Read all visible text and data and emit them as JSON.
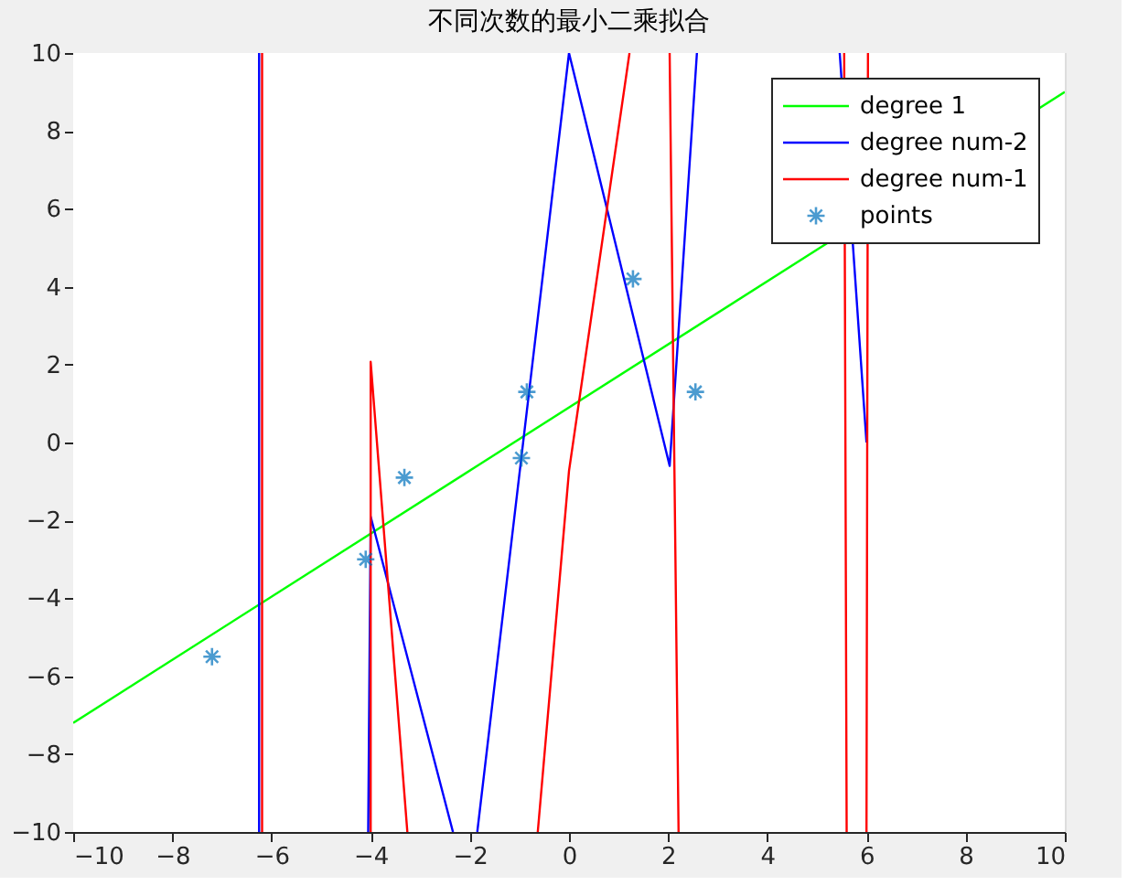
{
  "chart_data": {
    "type": "line",
    "title": "不同次数的最小二乘拟合",
    "xlim": [
      -10,
      10
    ],
    "ylim": [
      -10,
      10
    ],
    "xticks": [
      -10,
      -8,
      -6,
      -4,
      -2,
      0,
      2,
      4,
      6,
      8,
      10
    ],
    "yticks": [
      -10,
      -8,
      -6,
      -4,
      -2,
      0,
      2,
      4,
      6,
      8,
      10
    ],
    "legend": "top right",
    "series": [
      {
        "name": "degree 1",
        "type": "line",
        "color": "#00ff00",
        "x": [
          -10,
          10
        ],
        "values": [
          -7.2,
          9.0
        ]
      },
      {
        "name": "degree num-2",
        "type": "line",
        "color": "#0000ff",
        "x": [
          -6.25,
          -6.25,
          -5,
          -4.05,
          -4.0,
          -2.34,
          -2.1,
          -1.85,
          0,
          2.03,
          2.58,
          4,
          5.46,
          6.0
        ],
        "values": [
          10,
          -10,
          null,
          -10,
          -1.9,
          -10,
          null,
          -10,
          10,
          -0.6,
          10,
          null,
          10,
          0
        ]
      },
      {
        "name": "degree num-1",
        "type": "line",
        "color": "#ff0000",
        "x": [
          -6.19,
          -6.19,
          -5,
          -4.0,
          -4.0,
          -3.26,
          -2,
          -0.63,
          0,
          1.22,
          1.6,
          2.03,
          2.21,
          4,
          5.55,
          5.6,
          5.8,
          6.0,
          6.03
        ],
        "values": [
          10,
          -10,
          null,
          -10,
          2.07,
          -10,
          null,
          -10,
          -0.73,
          10,
          null,
          10,
          -10,
          null,
          10,
          -10,
          null,
          -10,
          10
        ]
      },
      {
        "name": "points",
        "type": "scatter",
        "marker": "cross",
        "color": "#0072bd",
        "x": [
          -7.2,
          -4.1,
          -3.32,
          -0.96,
          -0.85,
          1.29,
          2.55
        ],
        "values": [
          -5.5,
          -3.0,
          -0.9,
          -0.4,
          1.3,
          4.2,
          1.3
        ]
      }
    ]
  }
}
